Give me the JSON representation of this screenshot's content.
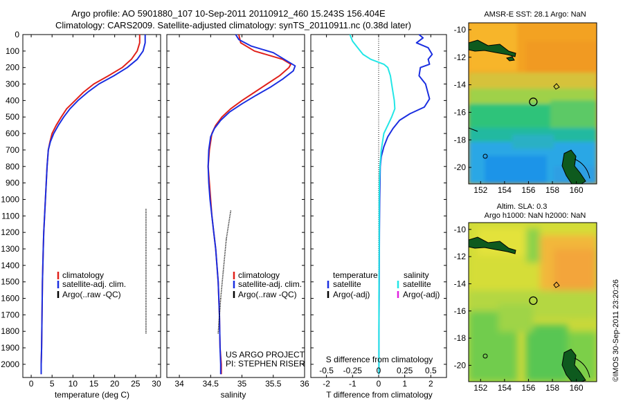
{
  "header": {
    "line1": "Argo profile: AO 5901880_107 10-Sep-2011 20110912_460 15.243S 156.404E",
    "line2": "Climatology: CARS2009. Satellite-adjusted climatology: synTS_20110911.nc (0.38d later)"
  },
  "colors": {
    "climatology": "#e0201a",
    "satellite": "#1a2ee0",
    "argo": "#000000",
    "sat_salinity": "#22e6e6",
    "argo_adj_salinity": "#e020e0"
  },
  "chart_data": [
    {
      "type": "line",
      "panel": "temperature",
      "xlabel": "temperature (deg C)",
      "xlim": [
        -2,
        31
      ],
      "ylim": [
        0,
        2080
      ],
      "xticks": [
        0,
        5,
        10,
        15,
        20,
        25,
        30
      ],
      "yticks": [
        0,
        100,
        200,
        300,
        400,
        500,
        600,
        700,
        800,
        900,
        1000,
        1100,
        1200,
        1300,
        1400,
        1500,
        1600,
        1700,
        1800,
        1900,
        2000
      ],
      "legend": [
        "climatology",
        "satellite-adj. clim.",
        "Argo(..raw -QC)"
      ],
      "series": [
        {
          "name": "climatology",
          "points": [
            [
              26.0,
              0
            ],
            [
              26.0,
              50
            ],
            [
              25.4,
              100
            ],
            [
              24.0,
              150
            ],
            [
              21.8,
              200
            ],
            [
              18.5,
              250
            ],
            [
              15.0,
              300
            ],
            [
              12.5,
              350
            ],
            [
              10.5,
              400
            ],
            [
              8.5,
              450
            ],
            [
              7.2,
              500
            ],
            [
              6.0,
              550
            ],
            [
              5.0,
              600
            ],
            [
              4.5,
              650
            ],
            [
              4.1,
              700
            ],
            [
              3.8,
              800
            ],
            [
              3.6,
              900
            ],
            [
              3.4,
              1000
            ],
            [
              3.2,
              1100
            ],
            [
              3.0,
              1200
            ],
            [
              2.9,
              1300
            ],
            [
              2.8,
              1400
            ],
            [
              2.7,
              1500
            ],
            [
              2.6,
              1700
            ],
            [
              2.5,
              1900
            ],
            [
              2.4,
              2000
            ],
            [
              2.4,
              2060
            ]
          ]
        },
        {
          "name": "satellite-adj. clim.",
          "points": [
            [
              27.3,
              0
            ],
            [
              27.3,
              50
            ],
            [
              26.8,
              100
            ],
            [
              25.4,
              150
            ],
            [
              23.0,
              200
            ],
            [
              19.8,
              250
            ],
            [
              16.2,
              300
            ],
            [
              13.5,
              350
            ],
            [
              11.2,
              400
            ],
            [
              9.3,
              450
            ],
            [
              7.8,
              500
            ],
            [
              6.5,
              550
            ],
            [
              5.4,
              600
            ],
            [
              4.6,
              650
            ],
            [
              4.1,
              700
            ],
            [
              3.8,
              800
            ],
            [
              3.6,
              900
            ],
            [
              3.4,
              1000
            ],
            [
              3.2,
              1100
            ],
            [
              3.0,
              1200
            ],
            [
              2.9,
              1300
            ],
            [
              2.8,
              1400
            ],
            [
              2.7,
              1500
            ],
            [
              2.6,
              1700
            ],
            [
              2.5,
              1900
            ],
            [
              2.4,
              2000
            ],
            [
              2.4,
              2060
            ]
          ]
        },
        {
          "name": "Argo(..raw -QC)",
          "points": [
            [
              27.5,
              1060
            ],
            [
              27.5,
              1810
            ]
          ]
        }
      ]
    },
    {
      "type": "line",
      "panel": "salinity",
      "xlabel": "salinity",
      "xlim": [
        33.8,
        36.0
      ],
      "ylim": [
        0,
        2080
      ],
      "xticks": [
        34,
        34.5,
        35,
        35.5,
        36
      ],
      "legend": [
        "climatology",
        "satellite-adj. clim.",
        "Argo(..raw -QC)"
      ],
      "annotations": [
        "US ARGO PROJECT",
        "PI: STEPHEN RISER"
      ],
      "series": [
        {
          "name": "climatology",
          "points": [
            [
              34.95,
              0
            ],
            [
              34.98,
              50
            ],
            [
              35.2,
              100
            ],
            [
              35.65,
              150
            ],
            [
              35.78,
              180
            ],
            [
              35.75,
              200
            ],
            [
              35.6,
              250
            ],
            [
              35.4,
              300
            ],
            [
              35.2,
              350
            ],
            [
              35.0,
              400
            ],
            [
              34.82,
              450
            ],
            [
              34.68,
              500
            ],
            [
              34.58,
              550
            ],
            [
              34.52,
              600
            ],
            [
              34.48,
              700
            ],
            [
              34.46,
              800
            ],
            [
              34.48,
              900
            ],
            [
              34.5,
              1000
            ],
            [
              34.52,
              1100
            ],
            [
              34.55,
              1200
            ],
            [
              34.58,
              1300
            ],
            [
              34.6,
              1400
            ],
            [
              34.62,
              1500
            ],
            [
              34.64,
              1700
            ],
            [
              34.65,
              1900
            ],
            [
              34.67,
              2000
            ],
            [
              34.67,
              2060
            ]
          ]
        },
        {
          "name": "satellite-adj. clim.",
          "points": [
            [
              34.9,
              0
            ],
            [
              34.95,
              30
            ],
            [
              35.15,
              70
            ],
            [
              35.5,
              110
            ],
            [
              35.85,
              190
            ],
            [
              35.82,
              220
            ],
            [
              35.65,
              270
            ],
            [
              35.45,
              320
            ],
            [
              35.22,
              370
            ],
            [
              35.0,
              420
            ],
            [
              34.8,
              470
            ],
            [
              34.66,
              520
            ],
            [
              34.56,
              570
            ],
            [
              34.5,
              620
            ],
            [
              34.47,
              700
            ],
            [
              34.46,
              800
            ],
            [
              34.47,
              900
            ],
            [
              34.49,
              1000
            ],
            [
              34.52,
              1100
            ],
            [
              34.55,
              1200
            ],
            [
              34.58,
              1300
            ],
            [
              34.6,
              1400
            ],
            [
              34.62,
              1500
            ],
            [
              34.64,
              1700
            ],
            [
              34.65,
              1900
            ],
            [
              34.66,
              2000
            ],
            [
              34.66,
              2060
            ]
          ]
        },
        {
          "name": "Argo(..raw -QC)",
          "points": [
            [
              34.82,
              1070
            ],
            [
              34.75,
              1240
            ],
            [
              34.7,
              1440
            ],
            [
              34.66,
              1600
            ],
            [
              34.62,
              1810
            ]
          ]
        }
      ]
    },
    {
      "type": "line",
      "panel": "difference",
      "xlabel": "T difference from climatology",
      "xlabel_top": "S difference from climatology",
      "xlim": [
        -2.6,
        2.6
      ],
      "ylim": [
        0,
        2080
      ],
      "xticks": [
        -2,
        -1,
        0,
        1,
        2
      ],
      "xticks_secondary": [
        "-0.5",
        "-0.25",
        "0",
        "0.25",
        "0.5"
      ],
      "legend_headers": [
        "temperature",
        "salinity"
      ],
      "legend": [
        "satellite",
        "Argo(-adj)",
        "satellite",
        "Argo(-adj)"
      ],
      "series": [
        {
          "name": "satellite",
          "variable": "temperature",
          "points": [
            [
              1.55,
              0
            ],
            [
              1.7,
              20
            ],
            [
              1.45,
              50
            ],
            [
              1.9,
              80
            ],
            [
              2.05,
              120
            ],
            [
              1.9,
              150
            ],
            [
              1.95,
              180
            ],
            [
              1.6,
              200
            ],
            [
              1.55,
              250
            ],
            [
              1.8,
              300
            ],
            [
              1.95,
              390
            ],
            [
              1.75,
              440
            ],
            [
              1.2,
              480
            ],
            [
              0.8,
              520
            ],
            [
              0.55,
              570
            ],
            [
              0.35,
              620
            ],
            [
              0.2,
              680
            ],
            [
              0.1,
              740
            ],
            [
              0.06,
              800
            ],
            [
              0.05,
              900
            ],
            [
              0.04,
              1000
            ],
            [
              0.03,
              1200
            ],
            [
              0.02,
              1500
            ],
            [
              0.01,
              1800
            ],
            [
              0.01,
              2060
            ]
          ]
        },
        {
          "name": "satellite",
          "variable": "salinity",
          "points": [
            [
              -1.1,
              0
            ],
            [
              -1.0,
              40
            ],
            [
              -0.8,
              80
            ],
            [
              -0.6,
              120
            ],
            [
              -0.3,
              150
            ],
            [
              0.2,
              180
            ],
            [
              0.35,
              200
            ],
            [
              0.45,
              250
            ],
            [
              0.5,
              300
            ],
            [
              0.55,
              350
            ],
            [
              0.6,
              400
            ],
            [
              0.62,
              450
            ],
            [
              0.5,
              500
            ],
            [
              0.35,
              550
            ],
            [
              0.2,
              600
            ],
            [
              0.1,
              700
            ],
            [
              0.05,
              800
            ],
            [
              0.03,
              900
            ],
            [
              0.02,
              1000
            ],
            [
              0.02,
              1300
            ],
            [
              0.01,
              1600
            ],
            [
              0.01,
              1900
            ],
            [
              0.01,
              2060
            ]
          ]
        }
      ]
    },
    {
      "type": "heatmap",
      "panel": "sst-map",
      "title": "AMSR-E SST: 28.1  Argo: NaN",
      "xticks": [
        152,
        154,
        156,
        158,
        160
      ],
      "yticks": [
        -10,
        -12,
        -14,
        -16,
        -18,
        -20
      ],
      "xlim": [
        151,
        161.7
      ],
      "ylim": [
        -21.2,
        -9.5
      ],
      "marker": {
        "lon": 156.4,
        "lat": -15.24
      }
    },
    {
      "type": "heatmap",
      "panel": "sla-map",
      "title": "Altim. SLA: 0.3",
      "subtitle": "Argo h1000: NaN h2000: NaN",
      "xticks": [
        152,
        154,
        156,
        158,
        160
      ],
      "yticks": [
        -10,
        -12,
        -14,
        -16,
        -18,
        -20
      ],
      "xlim": [
        151,
        161.7
      ],
      "ylim": [
        -21.2,
        -9.5
      ],
      "marker": {
        "lon": 156.4,
        "lat": -15.24
      }
    }
  ],
  "credit": "©IMOS 30-Sep-2011 23:20:26"
}
